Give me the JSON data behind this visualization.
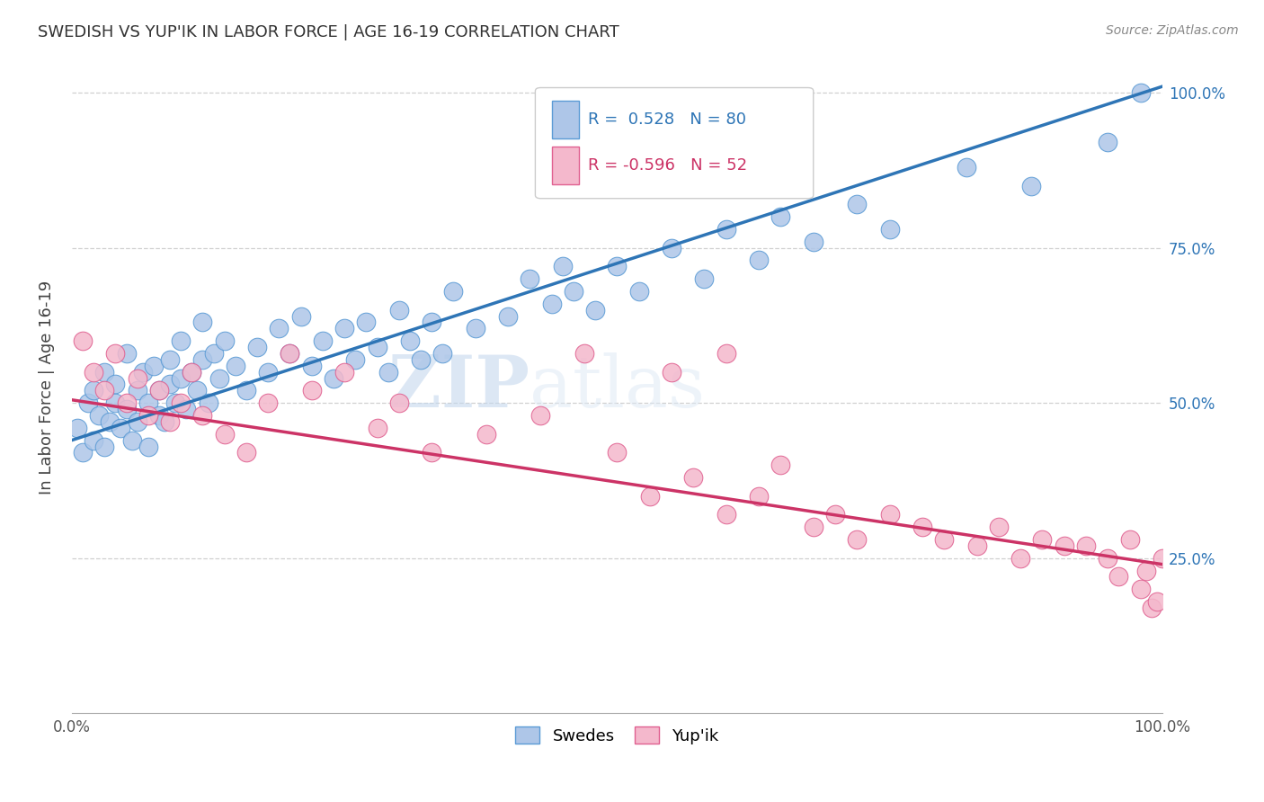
{
  "title": "SWEDISH VS YUP'IK IN LABOR FORCE | AGE 16-19 CORRELATION CHART",
  "source": "Source: ZipAtlas.com",
  "ylabel": "In Labor Force | Age 16-19",
  "watermark_zip": "ZIP",
  "watermark_atlas": "atlas",
  "blue_r": 0.528,
  "blue_n": 80,
  "pink_r": -0.596,
  "pink_n": 52,
  "blue_label": "Swedes",
  "pink_label": "Yup'ik",
  "blue_dot_color": "#aec6e8",
  "blue_edge_color": "#5b9bd5",
  "pink_dot_color": "#f4b8cc",
  "pink_edge_color": "#e06090",
  "blue_line_color": "#2e75b6",
  "pink_line_color": "#cc3366",
  "blue_line_intercept": 0.44,
  "blue_line_slope": 0.57,
  "pink_line_intercept": 0.505,
  "pink_line_slope": -0.265,
  "blue_scatter_x": [
    0.005,
    0.01,
    0.015,
    0.02,
    0.02,
    0.025,
    0.03,
    0.03,
    0.035,
    0.04,
    0.04,
    0.045,
    0.05,
    0.05,
    0.055,
    0.06,
    0.06,
    0.065,
    0.07,
    0.07,
    0.075,
    0.08,
    0.08,
    0.085,
    0.09,
    0.09,
    0.095,
    0.1,
    0.1,
    0.105,
    0.11,
    0.115,
    0.12,
    0.12,
    0.125,
    0.13,
    0.135,
    0.14,
    0.15,
    0.16,
    0.17,
    0.18,
    0.19,
    0.2,
    0.21,
    0.22,
    0.23,
    0.24,
    0.25,
    0.26,
    0.27,
    0.28,
    0.29,
    0.3,
    0.31,
    0.32,
    0.33,
    0.34,
    0.35,
    0.37,
    0.4,
    0.42,
    0.44,
    0.45,
    0.46,
    0.48,
    0.5,
    0.52,
    0.55,
    0.58,
    0.6,
    0.63,
    0.65,
    0.68,
    0.72,
    0.75,
    0.82,
    0.88,
    0.95,
    0.98
  ],
  "blue_scatter_y": [
    0.46,
    0.42,
    0.5,
    0.44,
    0.52,
    0.48,
    0.43,
    0.55,
    0.47,
    0.5,
    0.53,
    0.46,
    0.49,
    0.58,
    0.44,
    0.52,
    0.47,
    0.55,
    0.43,
    0.5,
    0.56,
    0.48,
    0.52,
    0.47,
    0.53,
    0.57,
    0.5,
    0.54,
    0.6,
    0.49,
    0.55,
    0.52,
    0.57,
    0.63,
    0.5,
    0.58,
    0.54,
    0.6,
    0.56,
    0.52,
    0.59,
    0.55,
    0.62,
    0.58,
    0.64,
    0.56,
    0.6,
    0.54,
    0.62,
    0.57,
    0.63,
    0.59,
    0.55,
    0.65,
    0.6,
    0.57,
    0.63,
    0.58,
    0.68,
    0.62,
    0.64,
    0.7,
    0.66,
    0.72,
    0.68,
    0.65,
    0.72,
    0.68,
    0.75,
    0.7,
    0.78,
    0.73,
    0.8,
    0.76,
    0.82,
    0.78,
    0.88,
    0.85,
    0.92,
    1.0
  ],
  "pink_scatter_x": [
    0.01,
    0.02,
    0.03,
    0.04,
    0.05,
    0.06,
    0.07,
    0.08,
    0.09,
    0.1,
    0.11,
    0.12,
    0.14,
    0.16,
    0.18,
    0.2,
    0.22,
    0.25,
    0.28,
    0.3,
    0.33,
    0.38,
    0.43,
    0.47,
    0.5,
    0.53,
    0.57,
    0.6,
    0.63,
    0.65,
    0.68,
    0.7,
    0.72,
    0.75,
    0.78,
    0.8,
    0.83,
    0.85,
    0.87,
    0.89,
    0.91,
    0.93,
    0.95,
    0.96,
    0.97,
    0.98,
    0.985,
    0.99,
    0.995,
    1.0,
    0.6,
    0.55
  ],
  "pink_scatter_y": [
    0.6,
    0.55,
    0.52,
    0.58,
    0.5,
    0.54,
    0.48,
    0.52,
    0.47,
    0.5,
    0.55,
    0.48,
    0.45,
    0.42,
    0.5,
    0.58,
    0.52,
    0.55,
    0.46,
    0.5,
    0.42,
    0.45,
    0.48,
    0.58,
    0.42,
    0.35,
    0.38,
    0.32,
    0.35,
    0.4,
    0.3,
    0.32,
    0.28,
    0.32,
    0.3,
    0.28,
    0.27,
    0.3,
    0.25,
    0.28,
    0.27,
    0.27,
    0.25,
    0.22,
    0.28,
    0.2,
    0.23,
    0.17,
    0.18,
    0.25,
    0.58,
    0.55
  ]
}
